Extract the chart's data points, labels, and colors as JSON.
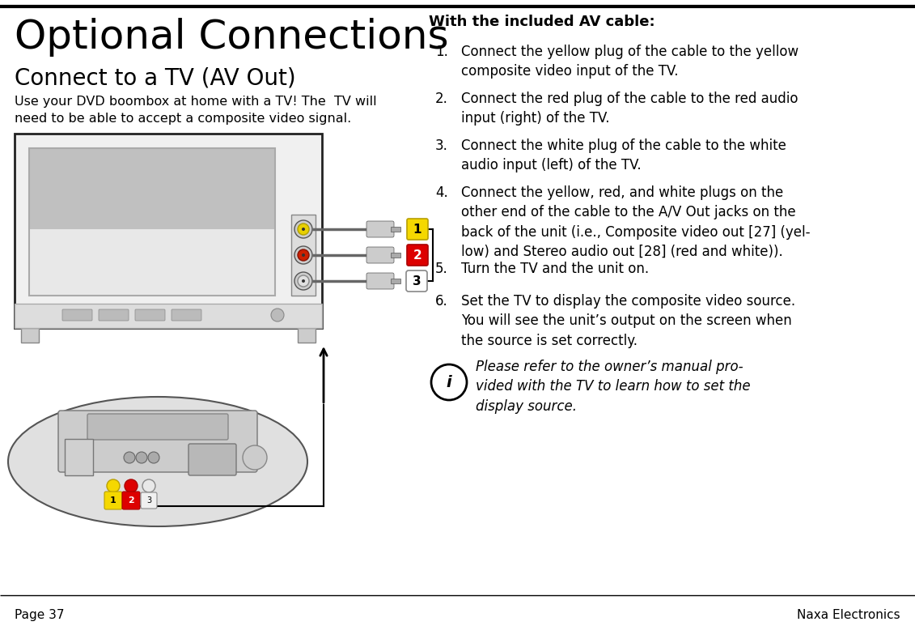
{
  "bg_color": "#ffffff",
  "page_title": "Optional Connections",
  "section_title": "Connect to a TV (AV Out)",
  "body_text": "Use your DVD boombox at home with a TV! The  TV will\nneed to be able to accept a composite video signal.",
  "right_title": "With the included AV cable:",
  "items": [
    "Connect the yellow plug of the cable to the yellow\ncomposite video input of the TV.",
    "Connect the red plug of the cable to the red audio\ninput (right) of the TV.",
    "Connect the white plug of the cable to the white\naudio input (left) of the TV.",
    "Connect the yellow, red, and white plugs on the\nother end of the cable to the A/V Out jacks on the\nback of the unit (i.e., Composite video out [27] (yel-\nlow) and Stereo audio out [28] (red and white)).",
    "Turn the TV and the unit on.",
    "Set the TV to display the composite video source.\nYou will see the unit’s output on the screen when\nthe source is set correctly."
  ],
  "note_text": "Please refer to the owner’s manual pro-\nvided with the TV to learn how to set the\ndisplay source.",
  "footer_left": "Page 37",
  "footer_right": "Naxa Electronics"
}
